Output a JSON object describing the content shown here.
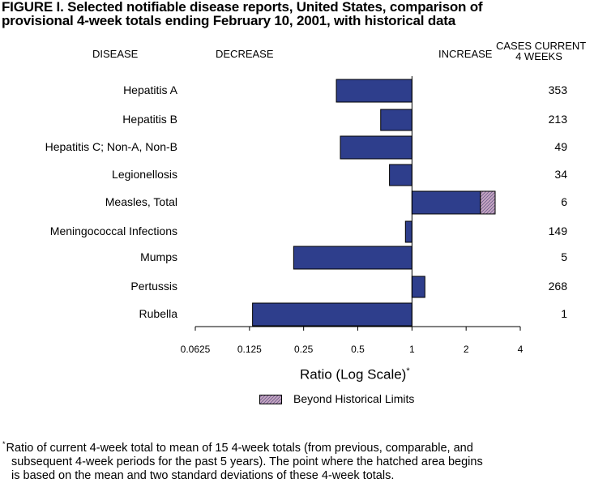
{
  "figure": {
    "title_line1": "FIGURE I. Selected notifiable disease reports, United States, comparison of",
    "title_line2": "provisional 4-week totals ending February 10, 2001, with historical data"
  },
  "headers": {
    "disease": "DISEASE",
    "decrease": "DECREASE",
    "increase": "INCREASE",
    "cases_line1": "CASES CURRENT",
    "cases_line2": "4 WEEKS"
  },
  "chart_data": {
    "type": "bar",
    "orientation": "horizontal",
    "scale": "log2",
    "xlim": [
      0.0625,
      4
    ],
    "xticks": [
      "0.0625",
      "0.125",
      "0.25",
      "0.5",
      "1",
      "2",
      "4"
    ],
    "xlabel": "Ratio (Log Scale)",
    "xlabel_marker": "*",
    "baseline": 1,
    "categories": [
      "Hepatitis A",
      "Hepatitis B",
      "Hepatitis C; Non-A, Non-B",
      "Legionellosis",
      "Measles, Total",
      "Meningococcal Infections",
      "Mumps",
      "Pertussis",
      "Rubella"
    ],
    "values": [
      0.38,
      0.67,
      0.4,
      0.75,
      2.9,
      0.92,
      0.22,
      1.18,
      0.13
    ],
    "beyond_historical_limit_start": [
      null,
      null,
      null,
      null,
      2.4,
      null,
      null,
      null,
      null
    ],
    "cases_current_4_weeks": [
      "353",
      "213",
      "49",
      "34",
      "6",
      "149",
      "5",
      "268",
      "1"
    ],
    "bar_color": "#2e3e8c",
    "hatch_color": "#c7a7c3",
    "legend": "Beyond Historical Limits"
  },
  "footnote": {
    "marker": "*",
    "line1": "Ratio of current 4-week total to mean of 15 4-week totals (from previous, comparable, and",
    "line2": "subsequent 4-week periods for the past 5 years). The point where the hatched area begins",
    "line3": "is based on the mean and two standard deviations of these 4-week totals."
  }
}
